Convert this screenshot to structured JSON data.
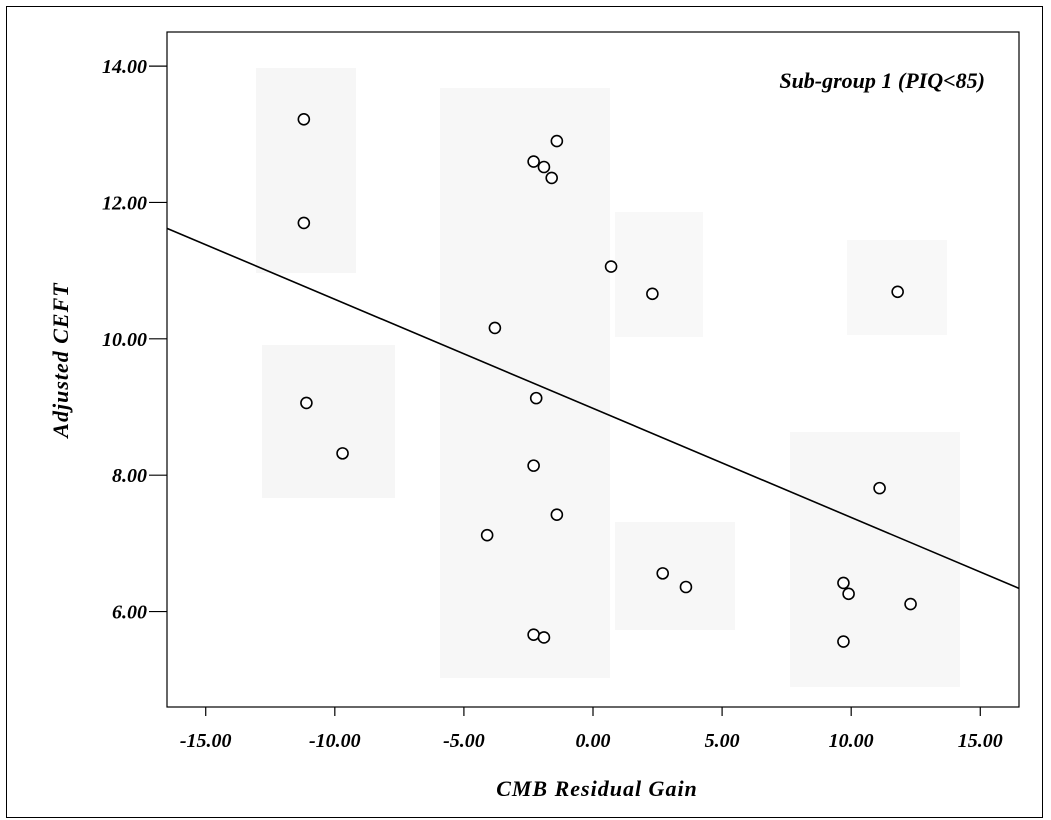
{
  "chart_data": {
    "type": "scatter",
    "title": "",
    "xlabel": "CMB Residual Gain",
    "ylabel": "Adjusted CEFT",
    "annotation": "Sub-group 1 (PIQ<85)",
    "xlim": [
      -16.5,
      16.5
    ],
    "ylim": [
      4.6,
      14.5
    ],
    "x_ticks": [
      -15,
      -10,
      -5,
      0,
      5,
      10,
      15
    ],
    "x_tick_labels": [
      "-15.00",
      "-10.00",
      "-5.00",
      "0.00",
      "5.00",
      "10.00",
      "15.00"
    ],
    "y_ticks": [
      6,
      8,
      10,
      12,
      14
    ],
    "y_tick_labels": [
      "6.00",
      "8.00",
      "10.00",
      "12.00",
      "14.00"
    ],
    "grid": false,
    "marker": "open-circle",
    "points": [
      {
        "x": -11.2,
        "y": 13.22
      },
      {
        "x": -11.2,
        "y": 11.7
      },
      {
        "x": -11.1,
        "y": 9.06
      },
      {
        "x": -9.7,
        "y": 8.32
      },
      {
        "x": -4.1,
        "y": 7.12
      },
      {
        "x": -3.8,
        "y": 10.16
      },
      {
        "x": -2.3,
        "y": 12.6
      },
      {
        "x": -2.3,
        "y": 8.14
      },
      {
        "x": -2.3,
        "y": 5.66
      },
      {
        "x": -2.2,
        "y": 9.13
      },
      {
        "x": -1.9,
        "y": 12.52
      },
      {
        "x": -1.9,
        "y": 5.62
      },
      {
        "x": -1.6,
        "y": 12.36
      },
      {
        "x": -1.4,
        "y": 12.9
      },
      {
        "x": -1.4,
        "y": 7.42
      },
      {
        "x": 0.7,
        "y": 11.06
      },
      {
        "x": 2.3,
        "y": 10.66
      },
      {
        "x": 2.7,
        "y": 6.56
      },
      {
        "x": 3.6,
        "y": 6.36
      },
      {
        "x": 9.7,
        "y": 6.42
      },
      {
        "x": 9.7,
        "y": 5.56
      },
      {
        "x": 9.9,
        "y": 6.26
      },
      {
        "x": 11.1,
        "y": 7.81
      },
      {
        "x": 11.8,
        "y": 10.69
      },
      {
        "x": 12.3,
        "y": 6.11
      }
    ],
    "fit_line": {
      "x": [
        -16.5,
        16.5
      ],
      "y": [
        11.62,
        6.34
      ]
    }
  }
}
